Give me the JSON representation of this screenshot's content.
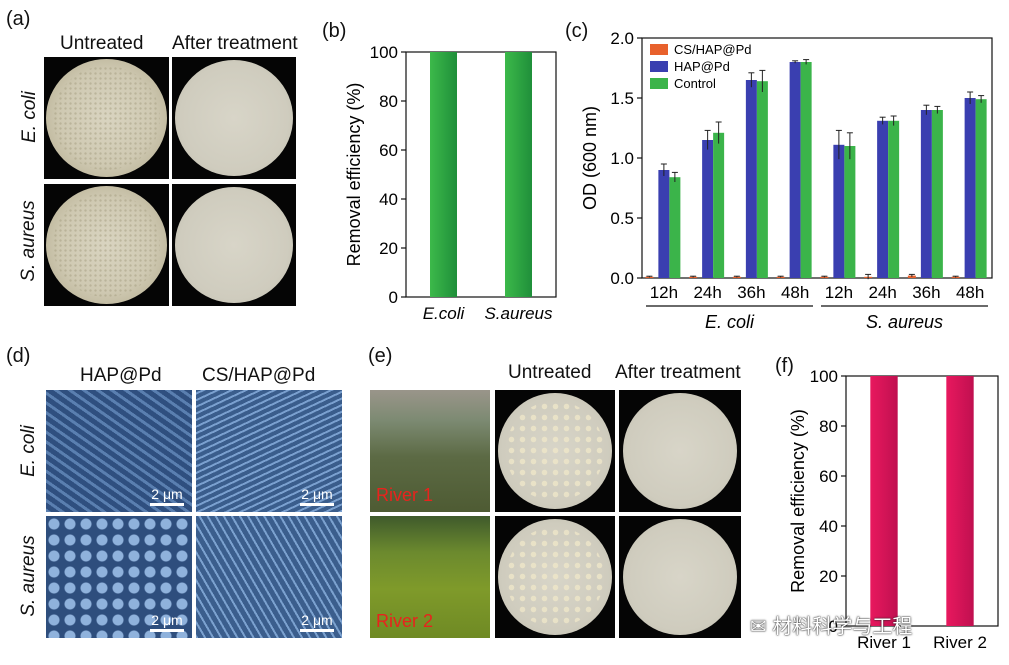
{
  "panels": {
    "a": {
      "label": "(a)",
      "col_labels": [
        "Untreated",
        "After treatment"
      ],
      "row_labels": [
        "E. coli",
        "S. aureus"
      ]
    },
    "d": {
      "label": "(d)",
      "col_labels": [
        "HAP@Pd",
        "CS/HAP@Pd"
      ],
      "row_labels": [
        "E. coli",
        "S. aureus"
      ],
      "scale_bar": "2 μm"
    },
    "e": {
      "label": "(e)",
      "col_labels": [
        "Untreated",
        "After treatment"
      ],
      "photo_labels": [
        "River 1",
        "River 2"
      ]
    }
  },
  "watermark": "材料科学与工程",
  "chart_data": [
    {
      "panel": "(b)",
      "type": "bar",
      "categories": [
        "E.coli",
        "S.aureus"
      ],
      "values": [
        100,
        100
      ],
      "ylabel": "Removal efficiency (%)",
      "xlabel": "",
      "ylim": [
        0,
        100
      ],
      "yticks": [
        0,
        20,
        40,
        60,
        80,
        100
      ],
      "color": "#3cb94a",
      "italic_categories": true
    },
    {
      "panel": "(c)",
      "type": "bar",
      "ylabel": "OD (600 nm)",
      "ylim": [
        0,
        2.0
      ],
      "yticks": [
        0.0,
        0.5,
        1.0,
        1.5,
        2.0
      ],
      "categories": [
        "12h",
        "24h",
        "36h",
        "48h",
        "12h",
        "24h",
        "36h",
        "48h"
      ],
      "groups": [
        {
          "name": "E. coli",
          "span": [
            0,
            3
          ]
        },
        {
          "name": "S. aureus",
          "span": [
            4,
            7
          ]
        }
      ],
      "legend_position": "top-left",
      "series": [
        {
          "name": "CS/HAP@Pd",
          "color": "#e8612c",
          "values": [
            0.01,
            0.01,
            0.01,
            0.01,
            0.01,
            0.01,
            0.02,
            0.01
          ],
          "errors": [
            0.005,
            0.005,
            0.005,
            0.005,
            0.005,
            0.02,
            0.01,
            0.005
          ]
        },
        {
          "name": "HAP@Pd",
          "color": "#3a3fb0",
          "values": [
            0.9,
            1.15,
            1.65,
            1.8,
            1.11,
            1.31,
            1.4,
            1.5
          ],
          "errors": [
            0.05,
            0.08,
            0.06,
            0.01,
            0.12,
            0.03,
            0.04,
            0.05
          ]
        },
        {
          "name": "Control",
          "color": "#3bb44a",
          "values": [
            0.84,
            1.21,
            1.64,
            1.8,
            1.1,
            1.31,
            1.4,
            1.49
          ],
          "errors": [
            0.04,
            0.09,
            0.09,
            0.02,
            0.11,
            0.04,
            0.03,
            0.03
          ]
        }
      ]
    },
    {
      "panel": "(f)",
      "type": "bar",
      "categories": [
        "River 1",
        "River 2"
      ],
      "values": [
        100,
        100
      ],
      "ylabel": "Removal efficiency (%)",
      "xlabel": "",
      "ylim": [
        0,
        100
      ],
      "yticks": [
        0,
        20,
        40,
        60,
        80,
        100
      ],
      "color": "#e8185e",
      "italic_categories": false
    }
  ]
}
